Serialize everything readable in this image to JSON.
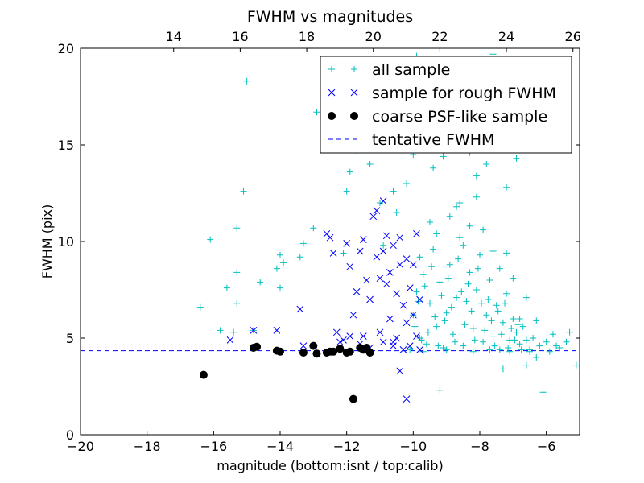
{
  "chart_data": {
    "type": "scatter",
    "title": "FWHM vs magnitudes",
    "xlabel": "magnitude (bottom:isnt / top:calib)",
    "ylabel": "FWHM (pix)",
    "xlim": [
      -20,
      -5
    ],
    "ylim": [
      0,
      20
    ],
    "x_ticks": [
      -20,
      -18,
      -16,
      -14,
      -12,
      -10,
      -8,
      -6
    ],
    "x_tick_labels": [
      "−20",
      "−18",
      "−16",
      "−14",
      "−12",
      "−10",
      "−8",
      "−6"
    ],
    "y_ticks": [
      0,
      5,
      10,
      15,
      20
    ],
    "y_tick_labels": [
      "0",
      "5",
      "10",
      "15",
      "20"
    ],
    "top_axis": {
      "offset": 31.2,
      "ticks": [
        14,
        16,
        18,
        20,
        22,
        24,
        26
      ],
      "tick_labels": [
        "14",
        "16",
        "18",
        "20",
        "22",
        "24",
        "26"
      ]
    },
    "grid": false,
    "legend_position": "top-right",
    "tentative_fwhm": 4.35,
    "series": [
      {
        "name": "all sample",
        "marker": "plus",
        "color": "#00bfbf",
        "points": [
          [
            -16.4,
            6.6
          ],
          [
            -16.1,
            10.1
          ],
          [
            -15.8,
            5.4
          ],
          [
            -15.6,
            7.6
          ],
          [
            -15.4,
            5.3
          ],
          [
            -15.3,
            8.4
          ],
          [
            -15.3,
            10.7
          ],
          [
            -15.3,
            6.8
          ],
          [
            -15.1,
            12.6
          ],
          [
            -15.0,
            18.3
          ],
          [
            -14.8,
            5.4
          ],
          [
            -14.6,
            7.9
          ],
          [
            -14.1,
            8.6
          ],
          [
            -14.0,
            9.3
          ],
          [
            -14.0,
            7.6
          ],
          [
            -13.9,
            8.9
          ],
          [
            -13.4,
            9.2
          ],
          [
            -13.3,
            9.9
          ],
          [
            -13.0,
            10.7
          ],
          [
            -12.9,
            16.7
          ],
          [
            -12.1,
            9.4
          ],
          [
            -12.0,
            12.6
          ],
          [
            -11.9,
            13.6
          ],
          [
            -11.7,
            14.7
          ],
          [
            -11.3,
            14.0
          ],
          [
            -11.0,
            12.0
          ],
          [
            -10.9,
            9.8
          ],
          [
            -10.6,
            12.6
          ],
          [
            -10.5,
            11.5
          ],
          [
            -10.2,
            13.0
          ],
          [
            -10.0,
            14.5
          ],
          [
            -9.9,
            19.6
          ],
          [
            -9.6,
            18.4
          ],
          [
            -9.4,
            13.8
          ],
          [
            -9.2,
            2.3
          ],
          [
            -9.1,
            14.4
          ],
          [
            -8.8,
            15.2
          ],
          [
            -8.6,
            12.0
          ],
          [
            -8.5,
            18.9
          ],
          [
            -8.3,
            14.6
          ],
          [
            -8.1,
            13.4
          ],
          [
            -7.9,
            19.2
          ],
          [
            -7.8,
            14.0
          ],
          [
            -7.6,
            19.7
          ],
          [
            -7.3,
            3.4
          ],
          [
            -7.2,
            12.8
          ],
          [
            -6.9,
            14.3
          ],
          [
            -6.8,
            6.0
          ],
          [
            -6.6,
            3.6
          ],
          [
            -6.3,
            4.0
          ],
          [
            -6.1,
            2.2
          ],
          [
            -5.8,
            5.2
          ],
          [
            -5.6,
            4.5
          ],
          [
            -5.3,
            5.3
          ],
          [
            -5.1,
            3.6
          ],
          [
            -10.0,
            6.2
          ],
          [
            -9.9,
            7.4
          ],
          [
            -9.8,
            5.0
          ],
          [
            -9.7,
            8.3
          ],
          [
            -9.6,
            4.7
          ],
          [
            -9.5,
            6.8
          ],
          [
            -9.4,
            9.6
          ],
          [
            -9.3,
            5.6
          ],
          [
            -9.2,
            7.9
          ],
          [
            -9.1,
            4.5
          ],
          [
            -9.0,
            6.3
          ],
          [
            -8.9,
            8.8
          ],
          [
            -8.8,
            5.2
          ],
          [
            -8.7,
            7.1
          ],
          [
            -8.6,
            10.2
          ],
          [
            -8.5,
            4.6
          ],
          [
            -8.4,
            6.9
          ],
          [
            -8.3,
            8.4
          ],
          [
            -8.2,
            5.5
          ],
          [
            -8.1,
            7.5
          ],
          [
            -8.0,
            9.3
          ],
          [
            -7.9,
            4.8
          ],
          [
            -7.8,
            6.2
          ],
          [
            -7.7,
            8.0
          ],
          [
            -7.6,
            5.1
          ],
          [
            -7.5,
            6.7
          ],
          [
            -7.4,
            4.4
          ],
          [
            -7.3,
            5.8
          ],
          [
            -7.2,
            7.3
          ],
          [
            -7.1,
            4.9
          ],
          [
            -7.0,
            6.0
          ],
          [
            -6.9,
            5.3
          ],
          [
            -6.8,
            4.7
          ],
          [
            -6.7,
            5.6
          ],
          [
            -6.6,
            4.9
          ],
          [
            -6.5,
            4.4
          ],
          [
            -6.4,
            5.0
          ],
          [
            -6.2,
            4.6
          ],
          [
            -6.0,
            4.8
          ],
          [
            -5.9,
            4.3
          ],
          [
            -9.95,
            5.6
          ],
          [
            -9.85,
            6.9
          ],
          [
            -9.75,
            4.9
          ],
          [
            -9.65,
            7.7
          ],
          [
            -9.55,
            5.3
          ],
          [
            -9.45,
            8.7
          ],
          [
            -9.35,
            6.1
          ],
          [
            -9.25,
            4.6
          ],
          [
            -9.15,
            7.2
          ],
          [
            -9.05,
            5.9
          ],
          [
            -8.95,
            8.1
          ],
          [
            -8.85,
            6.6
          ],
          [
            -8.75,
            4.8
          ],
          [
            -8.65,
            9.1
          ],
          [
            -8.55,
            7.4
          ],
          [
            -8.45,
            5.7
          ],
          [
            -8.35,
            7.8
          ],
          [
            -8.25,
            6.4
          ],
          [
            -8.15,
            4.9
          ],
          [
            -8.05,
            8.6
          ],
          [
            -7.95,
            6.8
          ],
          [
            -7.85,
            5.4
          ],
          [
            -7.75,
            7.0
          ],
          [
            -7.65,
            5.9
          ],
          [
            -7.55,
            4.6
          ],
          [
            -7.45,
            6.4
          ],
          [
            -7.35,
            5.2
          ],
          [
            -7.25,
            6.8
          ],
          [
            -7.15,
            4.5
          ],
          [
            -7.05,
            5.5
          ],
          [
            -6.95,
            4.9
          ],
          [
            -6.85,
            5.7
          ],
          [
            -6.75,
            4.4
          ],
          [
            -8.5,
            9.8
          ],
          [
            -8.3,
            10.8
          ],
          [
            -8.9,
            11.3
          ],
          [
            -8.7,
            11.8
          ],
          [
            -9.3,
            10.4
          ],
          [
            -7.9,
            10.6
          ],
          [
            -7.6,
            9.5
          ],
          [
            -9.8,
            9.2
          ],
          [
            -9.5,
            11.0
          ],
          [
            -8.1,
            12.3
          ],
          [
            -7.4,
            8.6
          ],
          [
            -7.2,
            9.4
          ],
          [
            -7.0,
            8.1
          ],
          [
            -6.6,
            7.1
          ],
          [
            -6.3,
            5.9
          ],
          [
            -5.7,
            4.6
          ],
          [
            -5.4,
            4.8
          ],
          [
            -10.1,
            4.4
          ],
          [
            -9.7,
            4.3
          ],
          [
            -9.0,
            4.4
          ],
          [
            -8.2,
            4.3
          ],
          [
            -7.7,
            4.4
          ],
          [
            -7.1,
            4.3
          ],
          [
            -6.5,
            4.3
          ]
        ]
      },
      {
        "name": "sample for rough FWHM",
        "marker": "x",
        "color": "#0000ff",
        "points": [
          [
            -15.5,
            4.9
          ],
          [
            -14.8,
            5.4
          ],
          [
            -14.1,
            5.4
          ],
          [
            -13.4,
            6.5
          ],
          [
            -13.3,
            4.6
          ],
          [
            -12.6,
            10.4
          ],
          [
            -12.5,
            10.2
          ],
          [
            -12.4,
            9.4
          ],
          [
            -12.3,
            5.3
          ],
          [
            -12.2,
            4.8
          ],
          [
            -12.0,
            9.9
          ],
          [
            -11.9,
            8.7
          ],
          [
            -11.8,
            6.2
          ],
          [
            -11.7,
            7.4
          ],
          [
            -11.6,
            9.5
          ],
          [
            -11.5,
            5.1
          ],
          [
            -11.5,
            10.1
          ],
          [
            -11.4,
            8.0
          ],
          [
            -11.3,
            7.0
          ],
          [
            -11.2,
            11.3
          ],
          [
            -11.1,
            11.6
          ],
          [
            -11.1,
            9.2
          ],
          [
            -11.0,
            8.1
          ],
          [
            -11.0,
            5.3
          ],
          [
            -10.9,
            12.1
          ],
          [
            -10.9,
            9.5
          ],
          [
            -10.8,
            10.3
          ],
          [
            -10.8,
            7.8
          ],
          [
            -10.7,
            8.4
          ],
          [
            -10.7,
            6.0
          ],
          [
            -10.6,
            4.8
          ],
          [
            -10.6,
            9.8
          ],
          [
            -10.5,
            7.3
          ],
          [
            -10.5,
            5.0
          ],
          [
            -10.4,
            8.8
          ],
          [
            -10.4,
            10.2
          ],
          [
            -10.3,
            6.7
          ],
          [
            -10.3,
            4.4
          ],
          [
            -10.2,
            5.8
          ],
          [
            -10.2,
            9.1
          ],
          [
            -10.1,
            7.6
          ],
          [
            -10.1,
            4.6
          ],
          [
            -10.0,
            6.2
          ],
          [
            -10.0,
            8.8
          ],
          [
            -9.9,
            10.4
          ],
          [
            -9.9,
            5.1
          ],
          [
            -9.8,
            7.0
          ],
          [
            -9.8,
            4.4
          ],
          [
            -10.4,
            3.3
          ],
          [
            -10.2,
            1.85
          ],
          [
            -11.9,
            5.1
          ],
          [
            -12.1,
            4.9
          ],
          [
            -11.6,
            4.7
          ],
          [
            -11.3,
            4.5
          ],
          [
            -10.6,
            4.6
          ],
          [
            -10.9,
            4.8
          ]
        ]
      },
      {
        "name": "coarse PSF-like sample",
        "marker": "circle",
        "color": "#000000",
        "points": [
          [
            -16.3,
            3.1
          ],
          [
            -14.8,
            4.5
          ],
          [
            -14.7,
            4.55
          ],
          [
            -14.1,
            4.35
          ],
          [
            -14.0,
            4.3
          ],
          [
            -13.3,
            4.25
          ],
          [
            -13.0,
            4.6
          ],
          [
            -12.9,
            4.2
          ],
          [
            -12.6,
            4.25
          ],
          [
            -12.5,
            4.3
          ],
          [
            -12.4,
            4.3
          ],
          [
            -12.2,
            4.45
          ],
          [
            -12.0,
            4.25
          ],
          [
            -11.9,
            4.3
          ],
          [
            -11.8,
            1.85
          ],
          [
            -11.6,
            4.5
          ],
          [
            -11.5,
            4.4
          ],
          [
            -11.4,
            4.5
          ],
          [
            -11.3,
            4.25
          ]
        ]
      }
    ]
  },
  "legend": {
    "items": [
      {
        "label": "all sample",
        "marker": "plus",
        "color": "#00bfbf"
      },
      {
        "label": "sample for rough FWHM",
        "marker": "x",
        "color": "#0000ff"
      },
      {
        "label": "coarse PSF-like sample",
        "marker": "circle",
        "color": "#000000"
      },
      {
        "label": "tentative FWHM",
        "marker": "dashed-line",
        "color": "#0000ff"
      }
    ]
  }
}
